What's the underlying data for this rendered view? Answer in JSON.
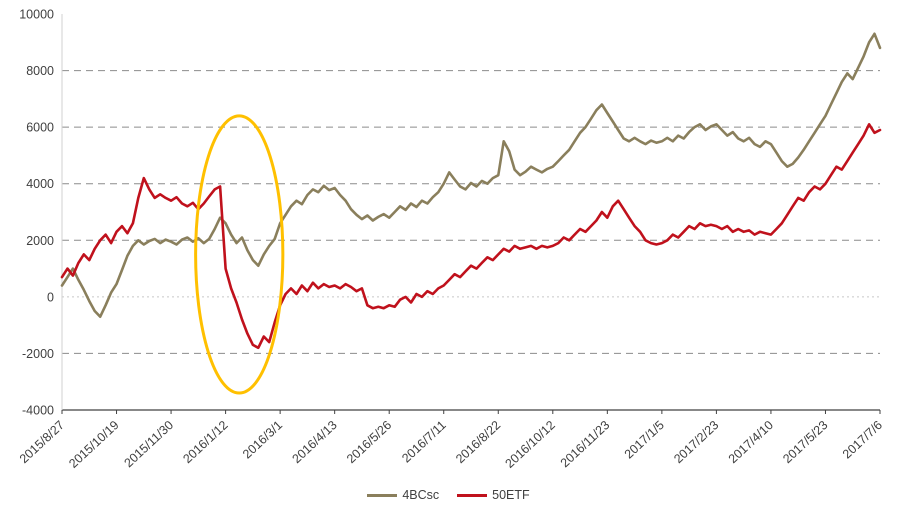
{
  "chart_data": {
    "type": "line",
    "title": "",
    "xlabel": "",
    "ylabel": "",
    "y_max": 10000,
    "y_min": -4000,
    "y_ticks": [
      10000,
      8000,
      6000,
      4000,
      2000,
      0,
      -2000,
      -4000
    ],
    "grid": "dashed-horizontal",
    "legend_position": "bottom-center",
    "tick_every": 10,
    "x_tick_labels": [
      "2015/8/27",
      "2015/10/19",
      "2015/11/30",
      "2016/1/12",
      "2016/3/1",
      "2016/4/13",
      "2016/5/26",
      "2016/7/11",
      "2016/8/22",
      "2016/10/12",
      "2016/11/23",
      "2017/1/5",
      "2017/2/23",
      "2017/4/10",
      "2017/5/23",
      "2017/7/6"
    ],
    "series": [
      {
        "name": "4BCsc",
        "color": "#8a7f5c",
        "values": [
          400,
          700,
          1000,
          600,
          250,
          -150,
          -500,
          -700,
          -300,
          150,
          450,
          950,
          1450,
          1800,
          2000,
          1850,
          1975,
          2050,
          1900,
          2025,
          1950,
          1850,
          2025,
          2100,
          1950,
          2075,
          1900,
          2050,
          2400,
          2800,
          2600,
          2200,
          1900,
          2100,
          1650,
          1300,
          1100,
          1500,
          1800,
          2050,
          2600,
          2900,
          3200,
          3400,
          3275,
          3600,
          3800,
          3700,
          3925,
          3775,
          3850,
          3600,
          3400,
          3100,
          2900,
          2750,
          2875,
          2700,
          2825,
          2925,
          2800,
          3000,
          3200,
          3075,
          3300,
          3175,
          3400,
          3300,
          3525,
          3700,
          4000,
          4400,
          4150,
          3900,
          3800,
          4025,
          3900,
          4100,
          4000,
          4200,
          4300,
          5500,
          5150,
          4500,
          4300,
          4425,
          4600,
          4500,
          4400,
          4525,
          4600,
          4800,
          5000,
          5200,
          5500,
          5800,
          6000,
          6300,
          6600,
          6800,
          6500,
          6200,
          5900,
          5600,
          5500,
          5625,
          5500,
          5400,
          5525,
          5450,
          5500,
          5625,
          5500,
          5700,
          5600,
          5825,
          6000,
          6100,
          5900,
          6025,
          6100,
          5900,
          5700,
          5825,
          5600,
          5500,
          5625,
          5400,
          5300,
          5500,
          5400,
          5100,
          4800,
          4600,
          4700,
          4925,
          5200,
          5500,
          5800,
          6100,
          6400,
          6800,
          7200,
          7600,
          7900,
          7700,
          8100,
          8500,
          9000,
          9300,
          8800
        ]
      },
      {
        "name": "50ETF",
        "color": "#c0111c",
        "values": [
          700,
          1000,
          750,
          1200,
          1500,
          1300,
          1700,
          2000,
          2200,
          1900,
          2300,
          2500,
          2250,
          2600,
          3500,
          4200,
          3800,
          3500,
          3625,
          3500,
          3400,
          3525,
          3300,
          3200,
          3325,
          3100,
          3300,
          3550,
          3800,
          3900,
          1000,
          300,
          -200,
          -800,
          -1300,
          -1700,
          -1800,
          -1400,
          -1600,
          -900,
          -300,
          100,
          300,
          100,
          400,
          200,
          500,
          300,
          450,
          350,
          400,
          300,
          450,
          350,
          200,
          300,
          -300,
          -400,
          -350,
          -400,
          -300,
          -350,
          -100,
          0,
          -200,
          100,
          0,
          200,
          100,
          300,
          400,
          600,
          800,
          700,
          900,
          1100,
          1000,
          1200,
          1400,
          1300,
          1500,
          1700,
          1600,
          1800,
          1700,
          1750,
          1800,
          1700,
          1800,
          1750,
          1800,
          1900,
          2100,
          2000,
          2200,
          2400,
          2300,
          2500,
          2700,
          3000,
          2800,
          3200,
          3400,
          3100,
          2800,
          2500,
          2300,
          2000,
          1900,
          1850,
          1900,
          2000,
          2200,
          2100,
          2300,
          2500,
          2400,
          2600,
          2500,
          2550,
          2500,
          2400,
          2500,
          2300,
          2400,
          2300,
          2350,
          2200,
          2300,
          2250,
          2200,
          2400,
          2600,
          2900,
          3200,
          3500,
          3400,
          3700,
          3900,
          3800,
          4000,
          4300,
          4600,
          4500,
          4800,
          5100,
          5400,
          5700,
          6100,
          5800,
          5900
        ]
      }
    ],
    "annotation_ellipse": {
      "center_index": 32.5,
      "center_value": 1500,
      "radius_index": 8,
      "radius_value": 4900,
      "color": "#ffc000",
      "meaning": "highlight of early-2016 divergence/crash region"
    },
    "colors": {
      "gridline": "#8c8c8c",
      "zero_line": "#c8c8c8",
      "axis_line": "#404040",
      "left_axis_line": "#d0d0d0",
      "tick_text": "#3f3f3f"
    }
  }
}
